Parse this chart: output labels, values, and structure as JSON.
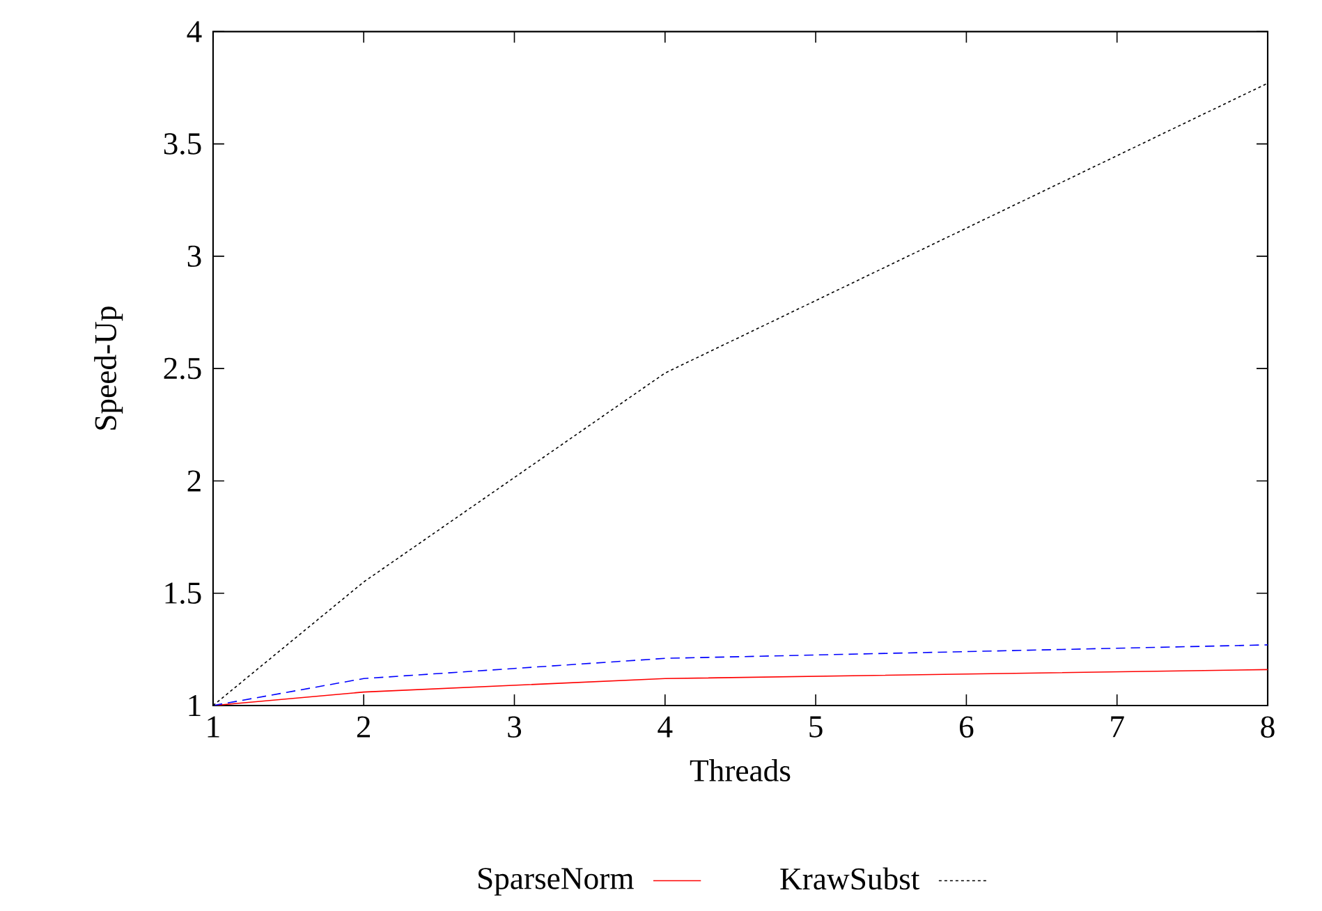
{
  "chart_data": {
    "type": "line",
    "xlabel": "Threads",
    "ylabel": "Speed-Up",
    "x": [
      1,
      2,
      4,
      8
    ],
    "series": [
      {
        "name": "SparseNorm",
        "color": "#ff0000",
        "line_style": "solid",
        "values": [
          1,
          1.06,
          1.12,
          1.16
        ]
      },
      {
        "color": "#0000ff",
        "line_style": "dashed",
        "values": [
          1,
          1.12,
          1.21,
          1.27
        ]
      },
      {
        "name": "KrawSubst",
        "color": "#000000",
        "line_style": "dotted",
        "values": [
          1,
          1.55,
          2.48,
          3.77
        ]
      }
    ],
    "xlim": [
      1,
      8
    ],
    "xticks": [
      1,
      2,
      3,
      4,
      5,
      6,
      7,
      8
    ],
    "ylim": [
      1,
      4
    ],
    "yticks": [
      1,
      1.5,
      2,
      2.5,
      3,
      3.5,
      4
    ],
    "grid": false,
    "legend": "bottom",
    "marker": "none"
  }
}
